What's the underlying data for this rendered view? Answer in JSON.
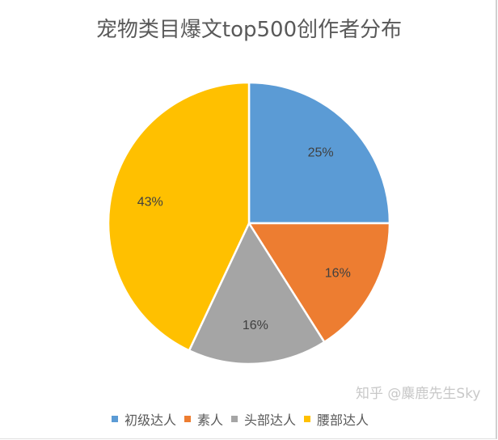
{
  "chart_data": {
    "type": "pie",
    "title": "宠物类目爆文top500创作者分布",
    "categories": [
      "初级达人",
      "素人",
      "头部达人",
      "腰部达人"
    ],
    "values": [
      25,
      16,
      16,
      43
    ],
    "labels": [
      "25%",
      "16%",
      "16%",
      "43%"
    ],
    "colors": [
      "#5b9bd5",
      "#ed7d31",
      "#a5a5a5",
      "#ffc000"
    ],
    "start_angle": "top",
    "direction": "clockwise",
    "legend": "bottom"
  },
  "watermark": "知乎 @麋鹿先生Sky"
}
